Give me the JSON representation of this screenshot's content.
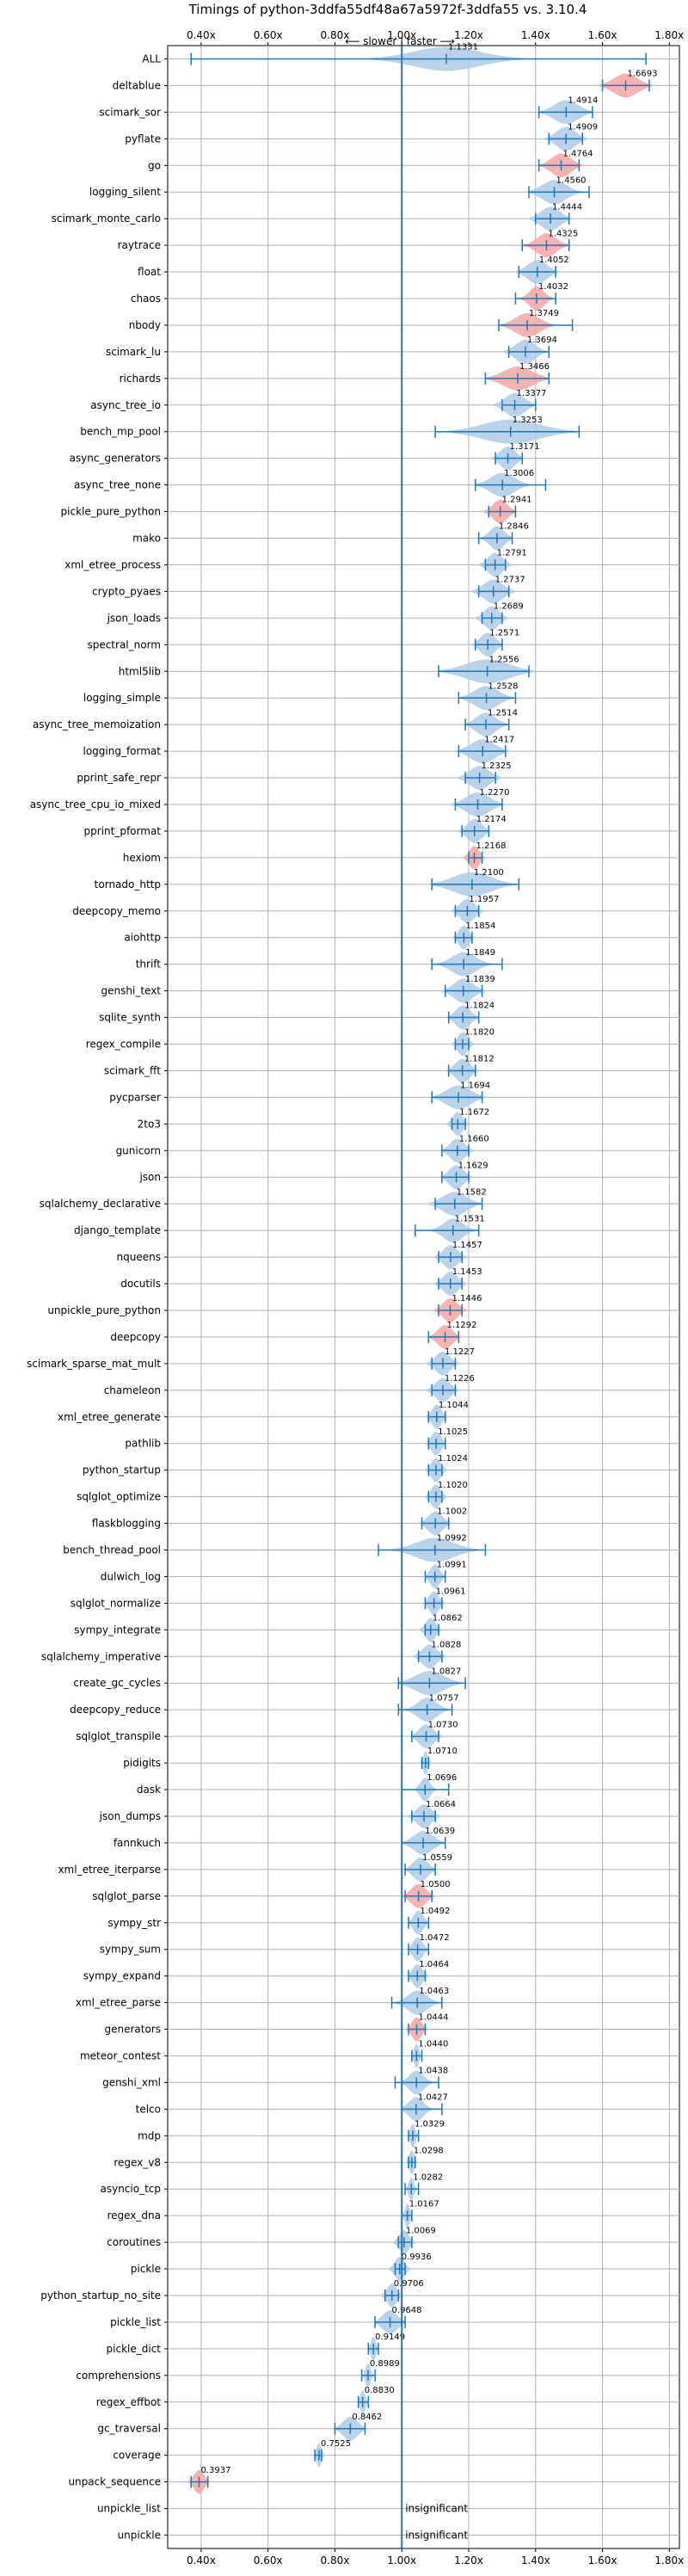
{
  "chart_data": {
    "type": "violin",
    "title": "Timings of python-3ddfa55df48a67a5972f-3ddfa55 vs. 3.10.4",
    "direction_label": "⟵ slower | faster ⟶",
    "xlim": [
      0.3,
      1.83
    ],
    "x_ticks": [
      0.4,
      0.6,
      0.8,
      1.0,
      1.2,
      1.4,
      1.6,
      1.8
    ],
    "x_tick_labels": [
      "0.40x",
      "0.60x",
      "0.80x",
      "1.00x",
      "1.20x",
      "1.40x",
      "1.60x",
      "1.80x"
    ],
    "reference_line": 1.0,
    "colors": {
      "faster": "#aecbe8",
      "slower": "#f4a6a6",
      "line": "#1f77b4"
    },
    "benchmarks": [
      {
        "name": "ALL",
        "value": 1.1331,
        "label": "1.1331",
        "lo": 0.37,
        "hi": 1.73,
        "spread": 0.14,
        "color": "blue"
      },
      {
        "name": "deltablue",
        "value": 1.6693,
        "label": "1.6693",
        "lo": 1.6,
        "hi": 1.74,
        "spread": 0.05,
        "color": "red"
      },
      {
        "name": "scimark_sor",
        "value": 1.4914,
        "label": "1.4914",
        "lo": 1.41,
        "hi": 1.57,
        "spread": 0.05,
        "color": "blue"
      },
      {
        "name": "pyflate",
        "value": 1.4909,
        "label": "1.4909",
        "lo": 1.44,
        "hi": 1.54,
        "spread": 0.04,
        "color": "blue"
      },
      {
        "name": "go",
        "value": 1.4764,
        "label": "1.4764",
        "lo": 1.41,
        "hi": 1.53,
        "spread": 0.04,
        "color": "red"
      },
      {
        "name": "logging_silent",
        "value": 1.456,
        "label": "1.4560",
        "lo": 1.38,
        "hi": 1.56,
        "spread": 0.05,
        "color": "blue"
      },
      {
        "name": "scimark_monte_carlo",
        "value": 1.4444,
        "label": "1.4444",
        "lo": 1.4,
        "hi": 1.5,
        "spread": 0.04,
        "color": "blue"
      },
      {
        "name": "raytrace",
        "value": 1.4325,
        "label": "1.4325",
        "lo": 1.36,
        "hi": 1.5,
        "spread": 0.04,
        "color": "red"
      },
      {
        "name": "float",
        "value": 1.4052,
        "label": "1.4052",
        "lo": 1.35,
        "hi": 1.46,
        "spread": 0.04,
        "color": "blue"
      },
      {
        "name": "chaos",
        "value": 1.4032,
        "label": "1.4032",
        "lo": 1.34,
        "hi": 1.46,
        "spread": 0.03,
        "color": "red"
      },
      {
        "name": "nbody",
        "value": 1.3749,
        "label": "1.3749",
        "lo": 1.29,
        "hi": 1.51,
        "spread": 0.05,
        "color": "red"
      },
      {
        "name": "scimark_lu",
        "value": 1.3694,
        "label": "1.3694",
        "lo": 1.32,
        "hi": 1.44,
        "spread": 0.04,
        "color": "blue"
      },
      {
        "name": "richards",
        "value": 1.3466,
        "label": "1.3466",
        "lo": 1.25,
        "hi": 1.44,
        "spread": 0.06,
        "color": "red"
      },
      {
        "name": "async_tree_io",
        "value": 1.3377,
        "label": "1.3377",
        "lo": 1.3,
        "hi": 1.4,
        "spread": 0.04,
        "color": "blue"
      },
      {
        "name": "bench_mp_pool",
        "value": 1.3253,
        "label": "1.3253",
        "lo": 1.1,
        "hi": 1.53,
        "spread": 0.12,
        "color": "blue"
      },
      {
        "name": "async_generators",
        "value": 1.3171,
        "label": "1.3171",
        "lo": 1.28,
        "hi": 1.36,
        "spread": 0.03,
        "color": "blue"
      },
      {
        "name": "async_tree_none",
        "value": 1.3006,
        "label": "1.3006",
        "lo": 1.22,
        "hi": 1.43,
        "spread": 0.05,
        "color": "blue"
      },
      {
        "name": "pickle_pure_python",
        "value": 1.2941,
        "label": "1.2941",
        "lo": 1.26,
        "hi": 1.34,
        "spread": 0.03,
        "color": "red"
      },
      {
        "name": "mako",
        "value": 1.2846,
        "label": "1.2846",
        "lo": 1.23,
        "hi": 1.33,
        "spread": 0.03,
        "color": "blue"
      },
      {
        "name": "xml_etree_process",
        "value": 1.2791,
        "label": "1.2791",
        "lo": 1.25,
        "hi": 1.31,
        "spread": 0.03,
        "color": "blue"
      },
      {
        "name": "crypto_pyaes",
        "value": 1.2737,
        "label": "1.2737",
        "lo": 1.23,
        "hi": 1.32,
        "spread": 0.04,
        "color": "blue"
      },
      {
        "name": "json_loads",
        "value": 1.2689,
        "label": "1.2689",
        "lo": 1.24,
        "hi": 1.3,
        "spread": 0.03,
        "color": "blue"
      },
      {
        "name": "spectral_norm",
        "value": 1.2571,
        "label": "1.2571",
        "lo": 1.22,
        "hi": 1.3,
        "spread": 0.03,
        "color": "blue"
      },
      {
        "name": "html5lib",
        "value": 1.2556,
        "label": "1.2556",
        "lo": 1.11,
        "hi": 1.38,
        "spread": 0.09,
        "color": "blue"
      },
      {
        "name": "logging_simple",
        "value": 1.2528,
        "label": "1.2528",
        "lo": 1.17,
        "hi": 1.34,
        "spread": 0.05,
        "color": "blue"
      },
      {
        "name": "async_tree_memoization",
        "value": 1.2514,
        "label": "1.2514",
        "lo": 1.19,
        "hi": 1.32,
        "spread": 0.04,
        "color": "blue"
      },
      {
        "name": "logging_format",
        "value": 1.2417,
        "label": "1.2417",
        "lo": 1.17,
        "hi": 1.31,
        "spread": 0.05,
        "color": "blue"
      },
      {
        "name": "pprint_safe_repr",
        "value": 1.2325,
        "label": "1.2325",
        "lo": 1.19,
        "hi": 1.28,
        "spread": 0.04,
        "color": "blue"
      },
      {
        "name": "async_tree_cpu_io_mixed",
        "value": 1.227,
        "label": "1.2270",
        "lo": 1.16,
        "hi": 1.3,
        "spread": 0.05,
        "color": "blue"
      },
      {
        "name": "pprint_pformat",
        "value": 1.2174,
        "label": "1.2174",
        "lo": 1.18,
        "hi": 1.26,
        "spread": 0.03,
        "color": "blue"
      },
      {
        "name": "hexiom",
        "value": 1.2168,
        "label": "1.2168",
        "lo": 1.2,
        "hi": 1.24,
        "spread": 0.02,
        "color": "red"
      },
      {
        "name": "tornado_http",
        "value": 1.21,
        "label": "1.2100",
        "lo": 1.09,
        "hi": 1.35,
        "spread": 0.08,
        "color": "blue"
      },
      {
        "name": "deepcopy_memo",
        "value": 1.1957,
        "label": "1.1957",
        "lo": 1.16,
        "hi": 1.23,
        "spread": 0.03,
        "color": "blue"
      },
      {
        "name": "aiohttp",
        "value": 1.1854,
        "label": "1.1854",
        "lo": 1.16,
        "hi": 1.21,
        "spread": 0.02,
        "color": "blue"
      },
      {
        "name": "thrift",
        "value": 1.1849,
        "label": "1.1849",
        "lo": 1.09,
        "hi": 1.3,
        "spread": 0.05,
        "color": "blue"
      },
      {
        "name": "genshi_text",
        "value": 1.1839,
        "label": "1.1839",
        "lo": 1.13,
        "hi": 1.24,
        "spread": 0.04,
        "color": "blue"
      },
      {
        "name": "sqlite_synth",
        "value": 1.1824,
        "label": "1.1824",
        "lo": 1.14,
        "hi": 1.23,
        "spread": 0.03,
        "color": "blue"
      },
      {
        "name": "regex_compile",
        "value": 1.182,
        "label": "1.1820",
        "lo": 1.16,
        "hi": 1.2,
        "spread": 0.02,
        "color": "blue"
      },
      {
        "name": "scimark_fft",
        "value": 1.1812,
        "label": "1.1812",
        "lo": 1.14,
        "hi": 1.22,
        "spread": 0.03,
        "color": "blue"
      },
      {
        "name": "pycparser",
        "value": 1.1694,
        "label": "1.1694",
        "lo": 1.09,
        "hi": 1.24,
        "spread": 0.05,
        "color": "blue"
      },
      {
        "name": "2to3",
        "value": 1.1672,
        "label": "1.1672",
        "lo": 1.15,
        "hi": 1.19,
        "spread": 0.02,
        "color": "blue"
      },
      {
        "name": "gunicorn",
        "value": 1.166,
        "label": "1.1660",
        "lo": 1.12,
        "hi": 1.2,
        "spread": 0.03,
        "color": "blue"
      },
      {
        "name": "json",
        "value": 1.1629,
        "label": "1.1629",
        "lo": 1.12,
        "hi": 1.2,
        "spread": 0.03,
        "color": "blue"
      },
      {
        "name": "sqlalchemy_declarative",
        "value": 1.1582,
        "label": "1.1582",
        "lo": 1.1,
        "hi": 1.24,
        "spread": 0.05,
        "color": "blue"
      },
      {
        "name": "django_template",
        "value": 1.1531,
        "label": "1.1531",
        "lo": 1.04,
        "hi": 1.23,
        "spread": 0.04,
        "color": "blue"
      },
      {
        "name": "nqueens",
        "value": 1.1457,
        "label": "1.1457",
        "lo": 1.11,
        "hi": 1.18,
        "spread": 0.03,
        "color": "blue"
      },
      {
        "name": "docutils",
        "value": 1.1453,
        "label": "1.1453",
        "lo": 1.11,
        "hi": 1.18,
        "spread": 0.03,
        "color": "blue"
      },
      {
        "name": "unpickle_pure_python",
        "value": 1.1446,
        "label": "1.1446",
        "lo": 1.11,
        "hi": 1.18,
        "spread": 0.03,
        "color": "red"
      },
      {
        "name": "deepcopy",
        "value": 1.1292,
        "label": "1.1292",
        "lo": 1.08,
        "hi": 1.17,
        "spread": 0.03,
        "color": "red"
      },
      {
        "name": "scimark_sparse_mat_mult",
        "value": 1.1227,
        "label": "1.1227",
        "lo": 1.09,
        "hi": 1.16,
        "spread": 0.03,
        "color": "blue"
      },
      {
        "name": "chameleon",
        "value": 1.1226,
        "label": "1.1226",
        "lo": 1.09,
        "hi": 1.16,
        "spread": 0.03,
        "color": "blue"
      },
      {
        "name": "xml_etree_generate",
        "value": 1.1044,
        "label": "1.1044",
        "lo": 1.08,
        "hi": 1.13,
        "spread": 0.02,
        "color": "blue"
      },
      {
        "name": "pathlib",
        "value": 1.1025,
        "label": "1.1025",
        "lo": 1.08,
        "hi": 1.13,
        "spread": 0.02,
        "color": "blue"
      },
      {
        "name": "python_startup",
        "value": 1.1024,
        "label": "1.1024",
        "lo": 1.08,
        "hi": 1.12,
        "spread": 0.02,
        "color": "blue"
      },
      {
        "name": "sqlglot_optimize",
        "value": 1.102,
        "label": "1.1020",
        "lo": 1.08,
        "hi": 1.12,
        "spread": 0.02,
        "color": "blue"
      },
      {
        "name": "flaskblogging",
        "value": 1.1002,
        "label": "1.1002",
        "lo": 1.06,
        "hi": 1.14,
        "spread": 0.03,
        "color": "blue"
      },
      {
        "name": "bench_thread_pool",
        "value": 1.0992,
        "label": "1.0992",
        "lo": 0.93,
        "hi": 1.25,
        "spread": 0.08,
        "color": "blue"
      },
      {
        "name": "dulwich_log",
        "value": 1.0991,
        "label": "1.0991",
        "lo": 1.07,
        "hi": 1.13,
        "spread": 0.02,
        "color": "blue"
      },
      {
        "name": "sqlglot_normalize",
        "value": 1.0961,
        "label": "1.0961",
        "lo": 1.07,
        "hi": 1.12,
        "spread": 0.02,
        "color": "blue"
      },
      {
        "name": "sympy_integrate",
        "value": 1.0862,
        "label": "1.0862",
        "lo": 1.07,
        "hi": 1.11,
        "spread": 0.02,
        "color": "blue"
      },
      {
        "name": "sqlalchemy_imperative",
        "value": 1.0828,
        "label": "1.0828",
        "lo": 1.05,
        "hi": 1.12,
        "spread": 0.03,
        "color": "blue"
      },
      {
        "name": "create_gc_cycles",
        "value": 1.0827,
        "label": "1.0827",
        "lo": 0.99,
        "hi": 1.19,
        "spread": 0.06,
        "color": "blue"
      },
      {
        "name": "deepcopy_reduce",
        "value": 1.0757,
        "label": "1.0757",
        "lo": 0.99,
        "hi": 1.15,
        "spread": 0.04,
        "color": "blue"
      },
      {
        "name": "sqlglot_transpile",
        "value": 1.073,
        "label": "1.0730",
        "lo": 1.03,
        "hi": 1.11,
        "spread": 0.03,
        "color": "blue"
      },
      {
        "name": "pidigits",
        "value": 1.071,
        "label": "1.0710",
        "lo": 1.06,
        "hi": 1.08,
        "spread": 0.01,
        "color": "blue"
      },
      {
        "name": "dask",
        "value": 1.0696,
        "label": "1.0696",
        "lo": 1.0,
        "hi": 1.14,
        "spread": 0.02,
        "color": "blue"
      },
      {
        "name": "json_dumps",
        "value": 1.0664,
        "label": "1.0664",
        "lo": 1.03,
        "hi": 1.1,
        "spread": 0.03,
        "color": "blue"
      },
      {
        "name": "fannkuch",
        "value": 1.0639,
        "label": "1.0639",
        "lo": 1.0,
        "hi": 1.13,
        "spread": 0.04,
        "color": "blue"
      },
      {
        "name": "xml_etree_iterparse",
        "value": 1.0559,
        "label": "1.0559",
        "lo": 1.01,
        "hi": 1.1,
        "spread": 0.03,
        "color": "blue"
      },
      {
        "name": "sqlglot_parse",
        "value": 1.05,
        "label": "1.0500",
        "lo": 1.01,
        "hi": 1.09,
        "spread": 0.03,
        "color": "red"
      },
      {
        "name": "sympy_str",
        "value": 1.0492,
        "label": "1.0492",
        "lo": 1.02,
        "hi": 1.08,
        "spread": 0.02,
        "color": "blue"
      },
      {
        "name": "sympy_sum",
        "value": 1.0472,
        "label": "1.0472",
        "lo": 1.02,
        "hi": 1.08,
        "spread": 0.02,
        "color": "blue"
      },
      {
        "name": "sympy_expand",
        "value": 1.0464,
        "label": "1.0464",
        "lo": 1.02,
        "hi": 1.07,
        "spread": 0.02,
        "color": "blue"
      },
      {
        "name": "xml_etree_parse",
        "value": 1.0463,
        "label": "1.0463",
        "lo": 0.97,
        "hi": 1.12,
        "spread": 0.04,
        "color": "blue"
      },
      {
        "name": "generators",
        "value": 1.0444,
        "label": "1.0444",
        "lo": 1.02,
        "hi": 1.07,
        "spread": 0.02,
        "color": "red"
      },
      {
        "name": "meteor_contest",
        "value": 1.044,
        "label": "1.0440",
        "lo": 1.03,
        "hi": 1.06,
        "spread": 0.01,
        "color": "blue"
      },
      {
        "name": "genshi_xml",
        "value": 1.0438,
        "label": "1.0438",
        "lo": 0.98,
        "hi": 1.11,
        "spread": 0.03,
        "color": "blue"
      },
      {
        "name": "telco",
        "value": 1.0427,
        "label": "1.0427",
        "lo": 1.0,
        "hi": 1.12,
        "spread": 0.03,
        "color": "blue"
      },
      {
        "name": "mdp",
        "value": 1.0329,
        "label": "1.0329",
        "lo": 1.02,
        "hi": 1.05,
        "spread": 0.01,
        "color": "blue"
      },
      {
        "name": "regex_v8",
        "value": 1.0298,
        "label": "1.0298",
        "lo": 1.02,
        "hi": 1.04,
        "spread": 0.01,
        "color": "blue"
      },
      {
        "name": "asyncio_tcp",
        "value": 1.0282,
        "label": "1.0282",
        "lo": 1.01,
        "hi": 1.05,
        "spread": 0.01,
        "color": "blue"
      },
      {
        "name": "regex_dna",
        "value": 1.0167,
        "label": "1.0167",
        "lo": 1.0,
        "hi": 1.03,
        "spread": 0.01,
        "color": "blue"
      },
      {
        "name": "coroutines",
        "value": 1.0069,
        "label": "1.0069",
        "lo": 0.99,
        "hi": 1.03,
        "spread": 0.02,
        "color": "blue"
      },
      {
        "name": "pickle",
        "value": 0.9936,
        "label": "0.9936",
        "lo": 0.98,
        "hi": 1.01,
        "spread": 0.02,
        "color": "blue"
      },
      {
        "name": "python_startup_no_site",
        "value": 0.9706,
        "label": "0.9706",
        "lo": 0.95,
        "hi": 0.99,
        "spread": 0.02,
        "color": "blue"
      },
      {
        "name": "pickle_list",
        "value": 0.9648,
        "label": "0.9648",
        "lo": 0.92,
        "hi": 1.01,
        "spread": 0.03,
        "color": "blue"
      },
      {
        "name": "pickle_dict",
        "value": 0.9149,
        "label": "0.9149",
        "lo": 0.9,
        "hi": 0.93,
        "spread": 0.01,
        "color": "blue"
      },
      {
        "name": "comprehensions",
        "value": 0.8989,
        "label": "0.8989",
        "lo": 0.88,
        "hi": 0.92,
        "spread": 0.01,
        "color": "blue"
      },
      {
        "name": "regex_effbot",
        "value": 0.883,
        "label": "0.8830",
        "lo": 0.87,
        "hi": 0.9,
        "spread": 0.01,
        "color": "blue"
      },
      {
        "name": "gc_traversal",
        "value": 0.8462,
        "label": "0.8462",
        "lo": 0.8,
        "hi": 0.89,
        "spread": 0.03,
        "color": "blue"
      },
      {
        "name": "coverage",
        "value": 0.7525,
        "label": "0.7525",
        "lo": 0.74,
        "hi": 0.76,
        "spread": 0.01,
        "color": "blue"
      },
      {
        "name": "unpack_sequence",
        "value": 0.3937,
        "label": "0.3937",
        "lo": 0.37,
        "hi": 0.42,
        "spread": 0.02,
        "color": "red"
      },
      {
        "name": "unpickle_list",
        "value": null,
        "label": "insignificant",
        "lo": null,
        "hi": null,
        "spread": 0,
        "color": "none"
      },
      {
        "name": "unpickle",
        "value": null,
        "label": "insignificant",
        "lo": null,
        "hi": null,
        "spread": 0,
        "color": "none"
      }
    ]
  }
}
